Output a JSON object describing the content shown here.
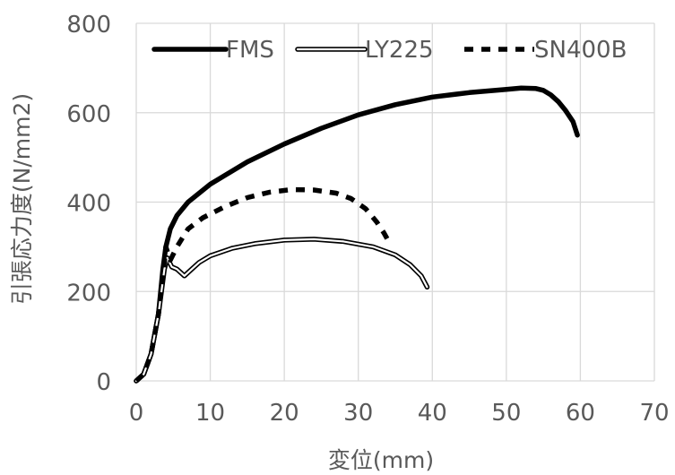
{
  "chart_data": {
    "type": "line",
    "xlabel": "変位(mm)",
    "ylabel": "引張応力度(N/mm2)",
    "xlim": [
      0,
      70
    ],
    "ylim": [
      0,
      800
    ],
    "x_ticks": [
      "0",
      "10",
      "20",
      "30",
      "40",
      "50",
      "60",
      "70"
    ],
    "y_ticks": [
      "0",
      "200",
      "400",
      "600",
      "800"
    ],
    "grid": true,
    "legend_position": "top",
    "series": [
      {
        "name": "FMS",
        "style": "solid",
        "color": "#000000",
        "points": [
          [
            0,
            0
          ],
          [
            1,
            15
          ],
          [
            2,
            60
          ],
          [
            3,
            150
          ],
          [
            3.6,
            250
          ],
          [
            4,
            300
          ],
          [
            4.6,
            340
          ],
          [
            5.5,
            370
          ],
          [
            7,
            400
          ],
          [
            10,
            440
          ],
          [
            15,
            490
          ],
          [
            20,
            530
          ],
          [
            25,
            565
          ],
          [
            30,
            595
          ],
          [
            35,
            618
          ],
          [
            40,
            635
          ],
          [
            45,
            645
          ],
          [
            50,
            652
          ],
          [
            52,
            655
          ],
          [
            54,
            654
          ],
          [
            55,
            650
          ],
          [
            56,
            640
          ],
          [
            57,
            625
          ],
          [
            58,
            605
          ],
          [
            59,
            580
          ],
          [
            59.6,
            550
          ]
        ]
      },
      {
        "name": "LY225",
        "style": "double",
        "color": "#000000",
        "points": [
          [
            0,
            0
          ],
          [
            1,
            15
          ],
          [
            2,
            60
          ],
          [
            3,
            150
          ],
          [
            3.8,
            250
          ],
          [
            4.2,
            275
          ],
          [
            4.8,
            255
          ],
          [
            5.5,
            250
          ],
          [
            6.5,
            235
          ],
          [
            7.5,
            250
          ],
          [
            8.5,
            265
          ],
          [
            10,
            280
          ],
          [
            13,
            297
          ],
          [
            16,
            307
          ],
          [
            20,
            315
          ],
          [
            24,
            317
          ],
          [
            28,
            312
          ],
          [
            32,
            300
          ],
          [
            35,
            282
          ],
          [
            37,
            260
          ],
          [
            38.5,
            235
          ],
          [
            39.3,
            210
          ]
        ]
      },
      {
        "name": "SN400B",
        "style": "dashed",
        "color": "#000000",
        "points": [
          [
            0,
            0
          ],
          [
            1,
            15
          ],
          [
            2,
            60
          ],
          [
            3,
            150
          ],
          [
            3.7,
            250
          ],
          [
            4,
            300
          ],
          [
            4.6,
            270
          ],
          [
            5.5,
            300
          ],
          [
            7,
            340
          ],
          [
            9,
            365
          ],
          [
            12,
            390
          ],
          [
            15,
            410
          ],
          [
            18,
            422
          ],
          [
            21,
            428
          ],
          [
            24,
            427
          ],
          [
            27,
            420
          ],
          [
            29,
            408
          ],
          [
            31,
            385
          ],
          [
            32.5,
            355
          ],
          [
            33.5,
            330
          ],
          [
            34,
            315
          ]
        ]
      }
    ]
  }
}
